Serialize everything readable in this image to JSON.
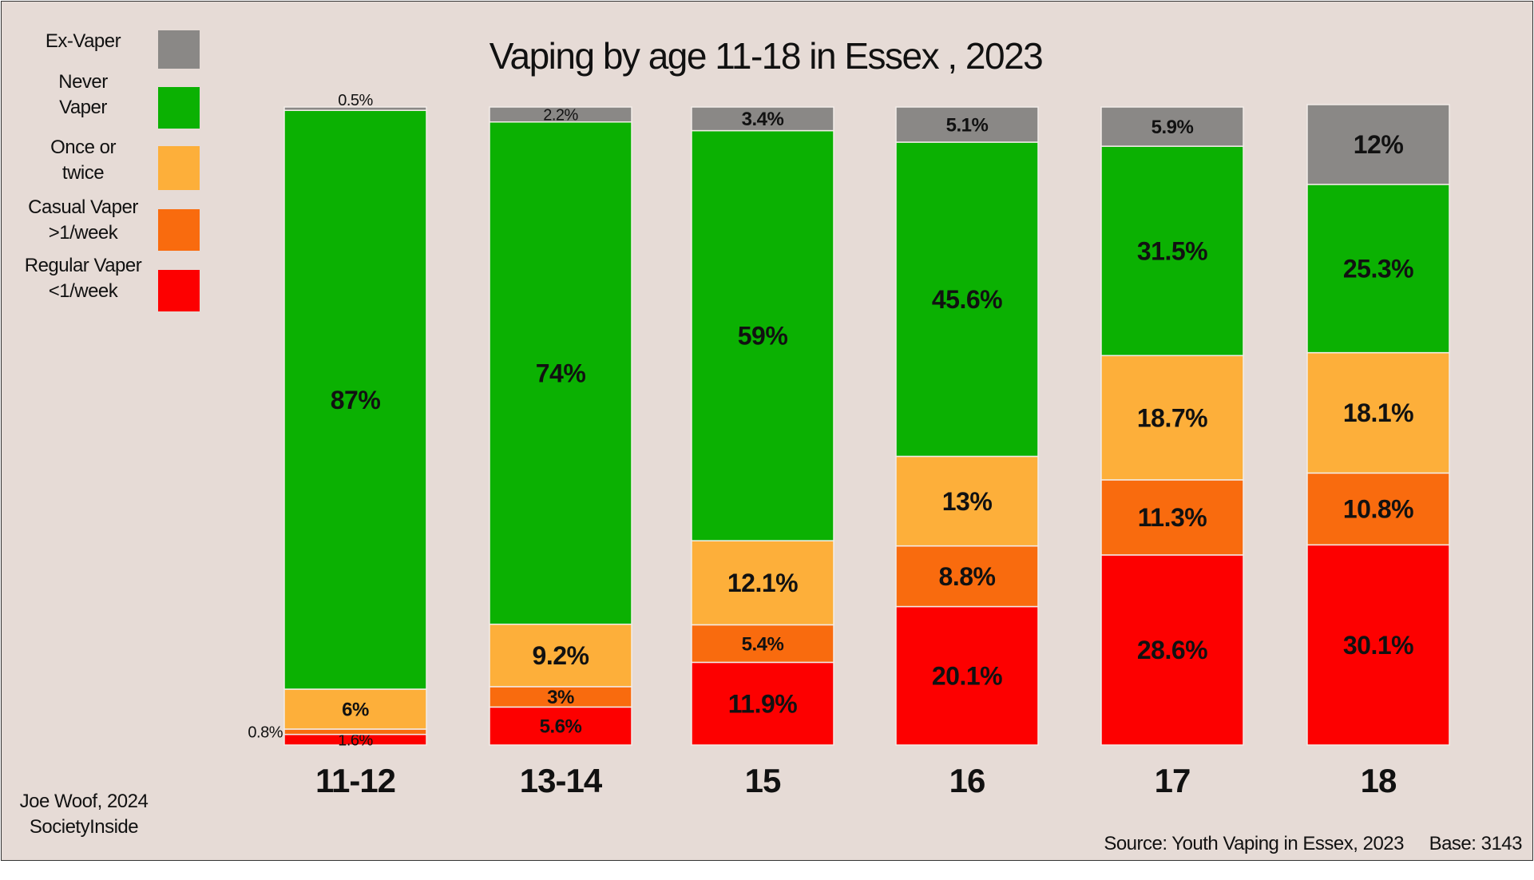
{
  "chart_data": {
    "type": "bar",
    "stacked": true,
    "title": "Vaping by age 11-18 in Essex , 2023",
    "categories": [
      "11-12",
      "13-14",
      "15",
      "16",
      "17",
      "18"
    ],
    "ylim": [
      0,
      100
    ],
    "grid": false,
    "legend_position": "left",
    "series": [
      {
        "name": "Regular Vaper <1/week",
        "legend_lines": [
          "Regular Vaper",
          "<1/week"
        ],
        "color": "#fd0000",
        "values": [
          1.6,
          5.6,
          11.9,
          20.1,
          28.6,
          30.1
        ],
        "labels": [
          "1.6%",
          "5.6%",
          "11.9%",
          "20.1%",
          "28.6%",
          "30.1%"
        ]
      },
      {
        "name": "Casual Vaper >1/week",
        "legend_lines": [
          "Casual Vaper",
          ">1/week"
        ],
        "color": "#f96b0e",
        "values": [
          0.8,
          3,
          5.4,
          8.8,
          11.3,
          10.8
        ],
        "labels": [
          "0.8%",
          "3%",
          "5.4%",
          "8.8%",
          "11.3%",
          "10.8%"
        ]
      },
      {
        "name": "Once or twice",
        "legend_lines": [
          "Once or",
          "twice"
        ],
        "color": "#fdaf3a",
        "values": [
          6,
          9.2,
          12.1,
          13,
          18.7,
          18.1
        ],
        "labels": [
          "6%",
          "9.2%",
          "12.1%",
          "13%",
          "18.7%",
          "18.1%"
        ]
      },
      {
        "name": "Never Vaper",
        "legend_lines": [
          "Never",
          "Vaper"
        ],
        "color": "#0bb102",
        "values": [
          87,
          74,
          59,
          45.6,
          31.5,
          25.3
        ],
        "labels": [
          "87%",
          "74%",
          "59%",
          "45.6%",
          "31.5%",
          "25.3%"
        ]
      },
      {
        "name": "Ex-Vaper",
        "legend_lines": [
          "Ex-Vaper"
        ],
        "color": "#8a8886",
        "values": [
          0.5,
          2.2,
          3.4,
          5.1,
          5.9,
          12
        ],
        "labels": [
          "0.5%",
          "2.2%",
          "3.4%",
          "5.1%",
          "5.9%",
          "12%"
        ]
      }
    ]
  },
  "legend_order": [
    "Ex-Vaper",
    "Never Vaper",
    "Once or twice",
    "Casual Vaper >1/week",
    "Regular Vaper <1/week"
  ],
  "credit": {
    "line1": "Joe Woof, 2024",
    "line2": "SocietyInside"
  },
  "source": "Source: Youth Vaping in Essex, 2023",
  "base": "Base: 3143"
}
